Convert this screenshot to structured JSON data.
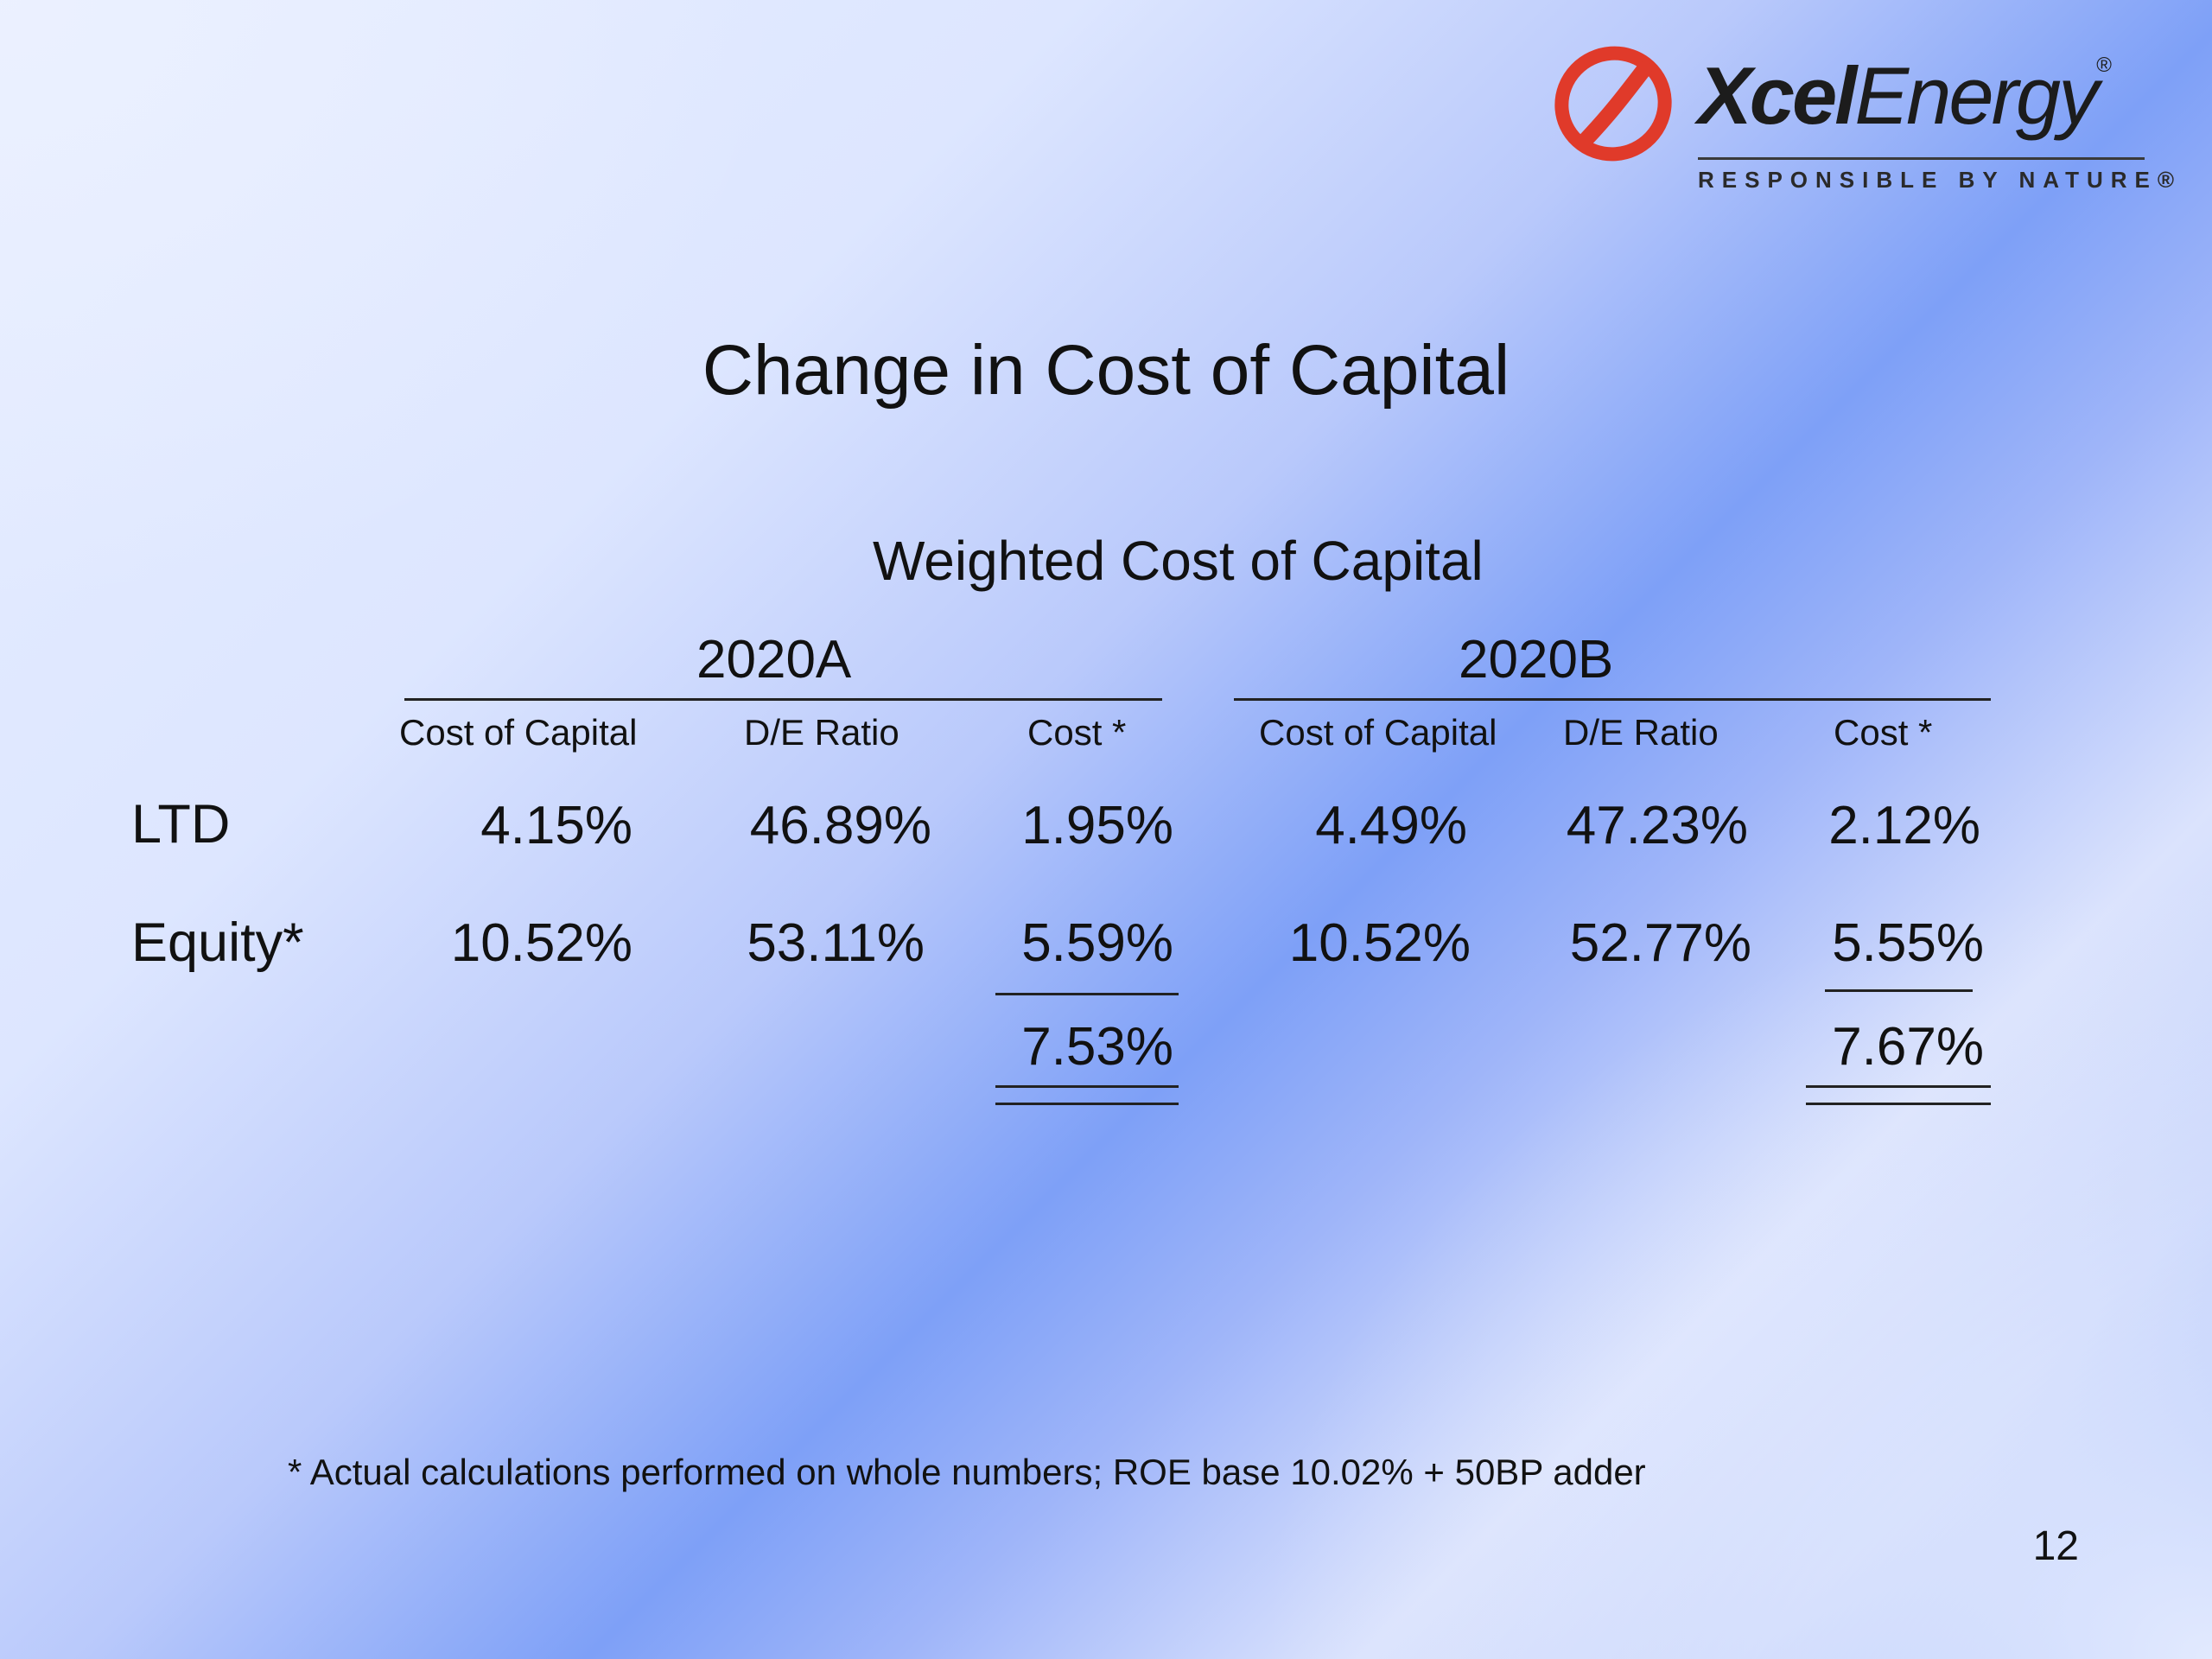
{
  "logo": {
    "word_bold": "Xcel",
    "word_regular": "Energy",
    "registered": "®",
    "tagline": "RESPONSIBLE BY NATURE®",
    "mark_color": "#e03a2a"
  },
  "title": "Change in Cost of Capital",
  "subtitle": "Weighted Cost of Capital",
  "groups": [
    {
      "label": "2020A",
      "columns": [
        "Cost of Capital",
        "D/E Ratio",
        "Cost *"
      ],
      "rows": [
        [
          "4.15%",
          "46.89%",
          "1.95%"
        ],
        [
          "10.52%",
          "53.11%",
          "5.59%"
        ]
      ],
      "total": "7.53%"
    },
    {
      "label": "2020B",
      "columns": [
        "Cost of Capital",
        "D/E Ratio",
        "Cost *"
      ],
      "rows": [
        [
          "4.49%",
          "47.23%",
          "2.12%"
        ],
        [
          "10.52%",
          "52.77%",
          "5.55%"
        ]
      ],
      "total": "7.67%"
    }
  ],
  "row_labels": [
    "LTD",
    "Equity*"
  ],
  "footnote": "* Actual calculations performed on whole numbers; ROE base 10.02% + 50BP adder",
  "page_number": "12"
}
